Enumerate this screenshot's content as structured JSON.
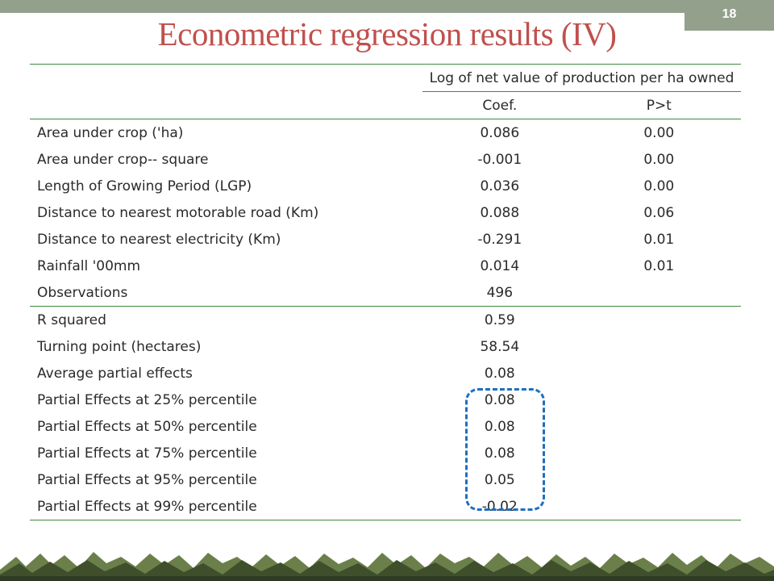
{
  "slide": {
    "page_number": "18",
    "title": "Econometric regression results (IV)"
  },
  "table": {
    "dependent_variable": "Log of net value of production per ha owned",
    "columns": [
      "Coef.",
      "P>t"
    ],
    "rows": [
      {
        "label": "Area under crop ('ha)",
        "coef": "0.086",
        "p": "0.00"
      },
      {
        "label": "Area under crop-- square",
        "coef": "-0.001",
        "p": "0.00"
      },
      {
        "label": "Length of Growing Period (LGP)",
        "coef": "0.036",
        "p": "0.00"
      },
      {
        "label": "Distance to nearest motorable road (Km)",
        "coef": "0.088",
        "p": "0.06"
      },
      {
        "label": "Distance to nearest electricity (Km)",
        "coef": "-0.291",
        "p": "0.01"
      },
      {
        "label": "Rainfall '00mm",
        "coef": "0.014",
        "p": "0.01"
      },
      {
        "label": "Observations",
        "coef": "496",
        "p": ""
      }
    ],
    "stats": [
      {
        "label": "R squared",
        "coef": "0.59"
      },
      {
        "label": "Turning point (hectares)",
        "coef": "58.54"
      },
      {
        "label": "Average partial effects",
        "coef": "0.08"
      },
      {
        "label": "Partial Effects at 25% percentile",
        "coef": "0.08"
      },
      {
        "label": "Partial Effects at 50% percentile",
        "coef": "0.08"
      },
      {
        "label": "Partial Effects at 75% percentile",
        "coef": "0.08"
      },
      {
        "label": "Partial Effects at 95% percentile",
        "coef": "0.05"
      },
      {
        "label": "Partial Effects at 99% percentile",
        "coef": "-0.02"
      }
    ]
  },
  "colors": {
    "title": "#c0504d",
    "rule": "#3d8a3d",
    "highlight": "#1f6fbf",
    "header_bar": "#93a08c"
  }
}
